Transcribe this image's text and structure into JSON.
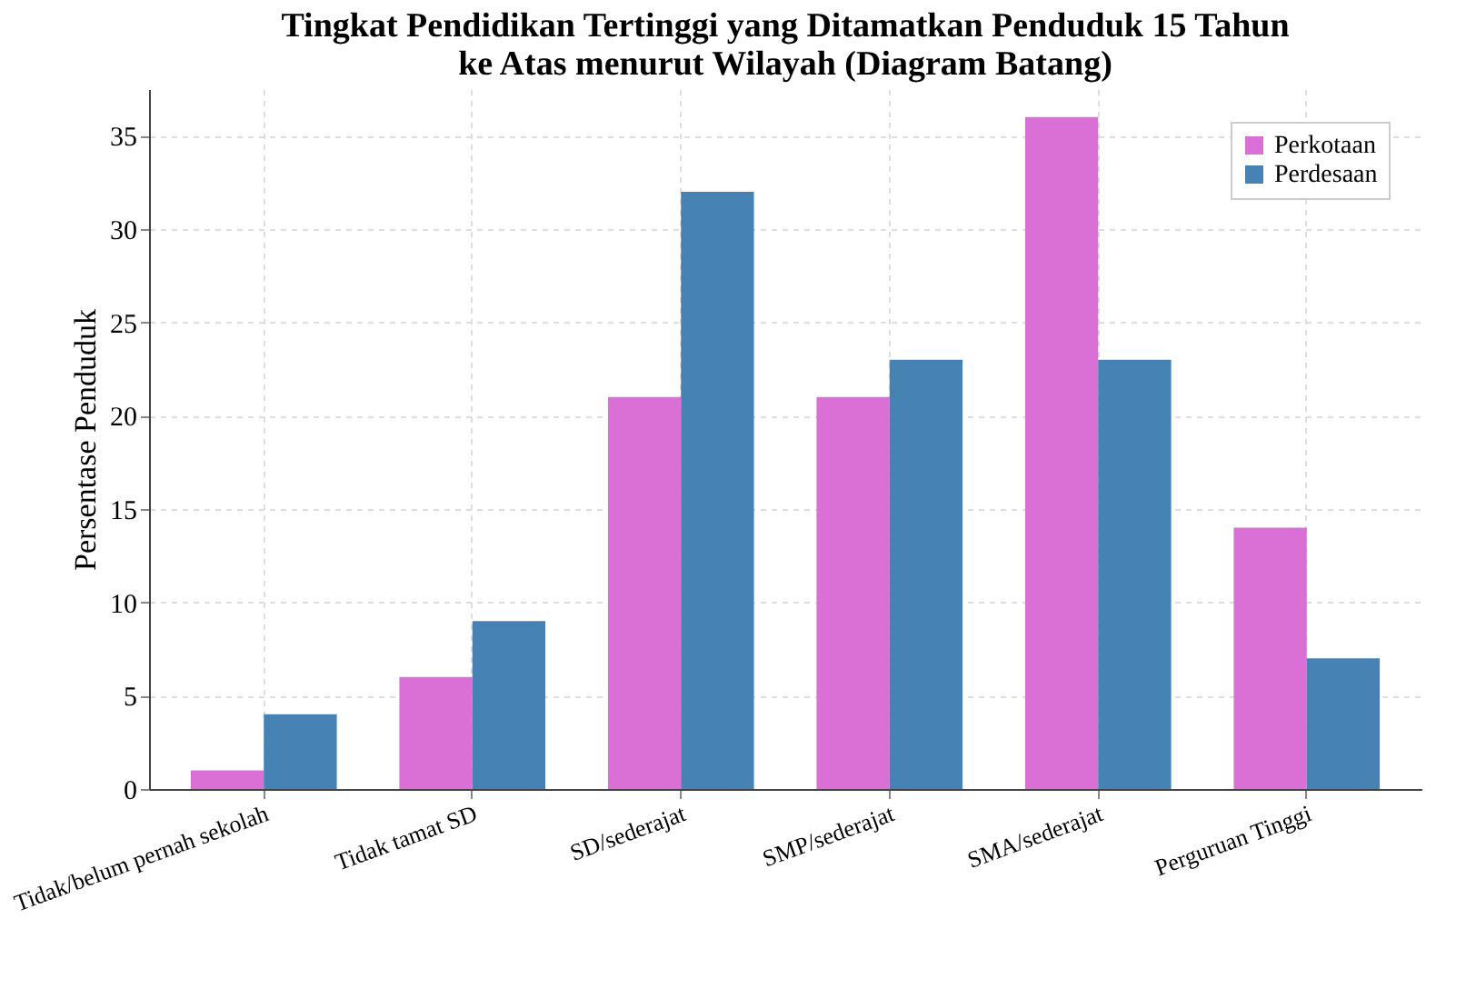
{
  "chart_data": {
    "type": "bar",
    "title": "Tingkat Pendidikan Tertinggi yang Ditamatkan Penduduk 15 Tahun ke Atas menurut Wilayah (Diagram Batang)",
    "ylabel": "Persentase Penduduk",
    "categories": [
      "Tidak/belum pernah sekolah",
      "Tidak tamat SD",
      "SD/sederajat",
      "SMP/sederajat",
      "SMA/sederajat",
      "Perguruan Tinggi"
    ],
    "series": [
      {
        "name": "Perkotaan",
        "color": "#da70d6",
        "values": [
          1,
          6,
          21,
          21,
          36,
          14
        ]
      },
      {
        "name": "Perdesaan",
        "color": "#4682b4",
        "values": [
          4,
          9,
          32,
          23,
          23,
          7
        ]
      }
    ],
    "ylim": [
      0,
      37.5
    ],
    "yticks": [
      0,
      5,
      10,
      15,
      20,
      25,
      30,
      35
    ],
    "grid": true,
    "legend": "top right"
  }
}
